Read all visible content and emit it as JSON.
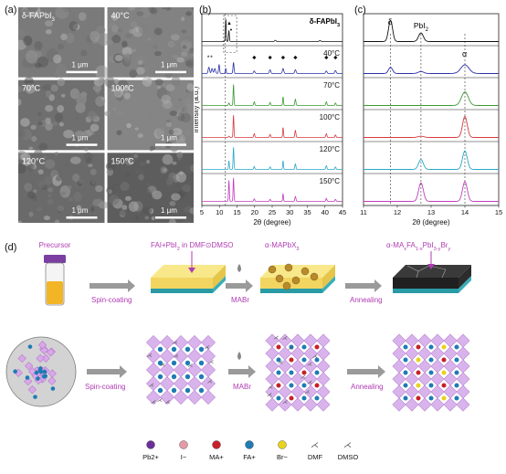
{
  "panel_a": {
    "letter": "(a)",
    "images": [
      {
        "label": "δ-FAPbI3",
        "scalebar": "1 μm",
        "tone": "#7a7a7a"
      },
      {
        "label": "40°C",
        "scalebar": "1 μm",
        "tone": "#828282"
      },
      {
        "label": "70°C",
        "scalebar": "1 μm",
        "tone": "#6f6f6f"
      },
      {
        "label": "100°C",
        "scalebar": "1 μm",
        "tone": "#858585"
      },
      {
        "label": "120°C",
        "scalebar": "1 μm",
        "tone": "#6a6a6a"
      },
      {
        "label": "150°C",
        "scalebar": "1 μm",
        "tone": "#5d5d5d"
      }
    ]
  },
  "panel_b": {
    "letter": "(b)",
    "xlabel": "2θ (degree)",
    "ylabel": "Intensity (a.u.)",
    "xticks": [
      "5",
      "10",
      "15",
      "20",
      "25",
      "30",
      "35",
      "40",
      "45"
    ],
    "traces": [
      {
        "label": "δ-FAPbI3",
        "color": "#111111"
      },
      {
        "label": "40°C",
        "color": "#2a2fa8"
      },
      {
        "label": "70°C",
        "color": "#3a9a32"
      },
      {
        "label": "100°C",
        "color": "#d9383a"
      },
      {
        "label": "120°C",
        "color": "#27a7c9"
      },
      {
        "label": "150°C",
        "color": "#c43bbd"
      }
    ]
  },
  "panel_c": {
    "letter": "(c)",
    "xlabel": "2θ (degree)",
    "xticks": [
      "11",
      "12",
      "13",
      "14",
      "15"
    ],
    "ann_delta": "δ",
    "ann_pbi2": "PbI2",
    "ann_alpha": "α"
  },
  "panel_d": {
    "letter": "(d)",
    "top": {
      "precursor": "Precursor",
      "film1": "FAI+PbI2 in DMF⊙DMSO",
      "film2": "α-MAPbX3",
      "film3": "α-MAxFA1-xPbI3-yBry",
      "arrow1": "Spin-coating",
      "arrow2": "MABr",
      "arrow3": "Annealing"
    },
    "bottom": {
      "arrow1": "Spin-coating",
      "arrow2": "MABr",
      "arrow3": "Annealing"
    },
    "legend": [
      {
        "label": "Pb2+",
        "color": "#6a2f9a"
      },
      {
        "label": "I−",
        "color": "#e39aa6"
      },
      {
        "label": "MA+",
        "color": "#c8202a"
      },
      {
        "label": "FA+",
        "color": "#1e7bb4"
      },
      {
        "label": "Br−",
        "color": "#e9d21c"
      },
      {
        "label": "DMF",
        "color": ""
      },
      {
        "label": "DMSO",
        "color": ""
      }
    ]
  }
}
